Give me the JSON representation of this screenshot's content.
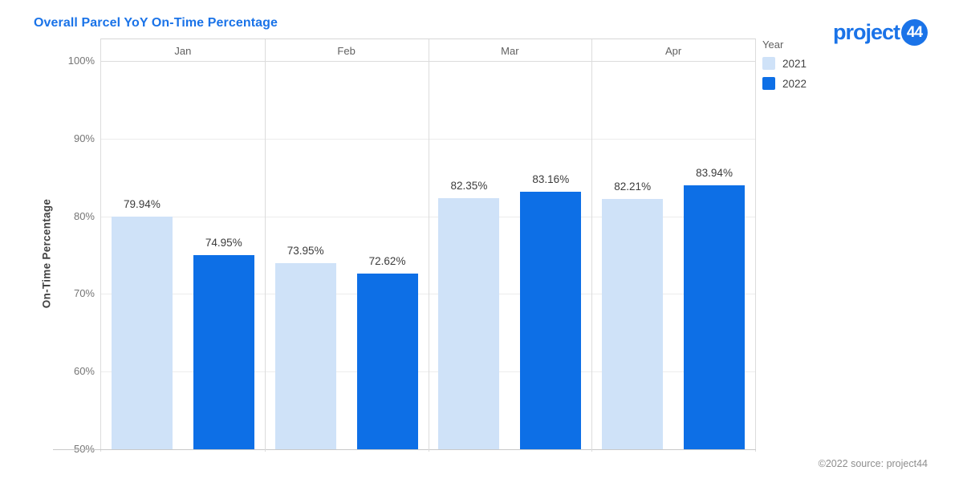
{
  "header": {
    "title": "Overall Parcel YoY On-Time Percentage",
    "logo": {
      "text": "project",
      "badge": "44"
    }
  },
  "colors": {
    "accent_blue": "#1a73e8",
    "bar_2021": "#cfe2f8",
    "bar_2022": "#0d6fe6",
    "grid": "#ececec"
  },
  "chart_data": {
    "type": "bar",
    "title": "Overall Parcel YoY On-Time Percentage",
    "categories": [
      "Jan",
      "Feb",
      "Mar",
      "Apr"
    ],
    "series": [
      {
        "name": "2021",
        "color": "#cfe2f8",
        "values": [
          79.94,
          73.95,
          82.35,
          82.21
        ]
      },
      {
        "name": "2022",
        "color": "#0d6fe6",
        "values": [
          74.95,
          72.62,
          83.16,
          83.94
        ]
      }
    ],
    "data_labels": [
      [
        "79.94%",
        "73.95%",
        "82.35%",
        "82.21%"
      ],
      [
        "74.95%",
        "72.62%",
        "83.16%",
        "83.94%"
      ]
    ],
    "ylabel": "On-Time Percentage",
    "xlabel": "",
    "ylim": [
      50,
      100
    ],
    "yticks": [
      100,
      90,
      80,
      70,
      60,
      50
    ],
    "ytick_labels": [
      "100%",
      "90%",
      "80%",
      "70%",
      "60%",
      "50%"
    ],
    "grid": true,
    "legend_title": "Year",
    "legend_position": "right"
  },
  "footer": {
    "source": "©2022 source: project44"
  }
}
